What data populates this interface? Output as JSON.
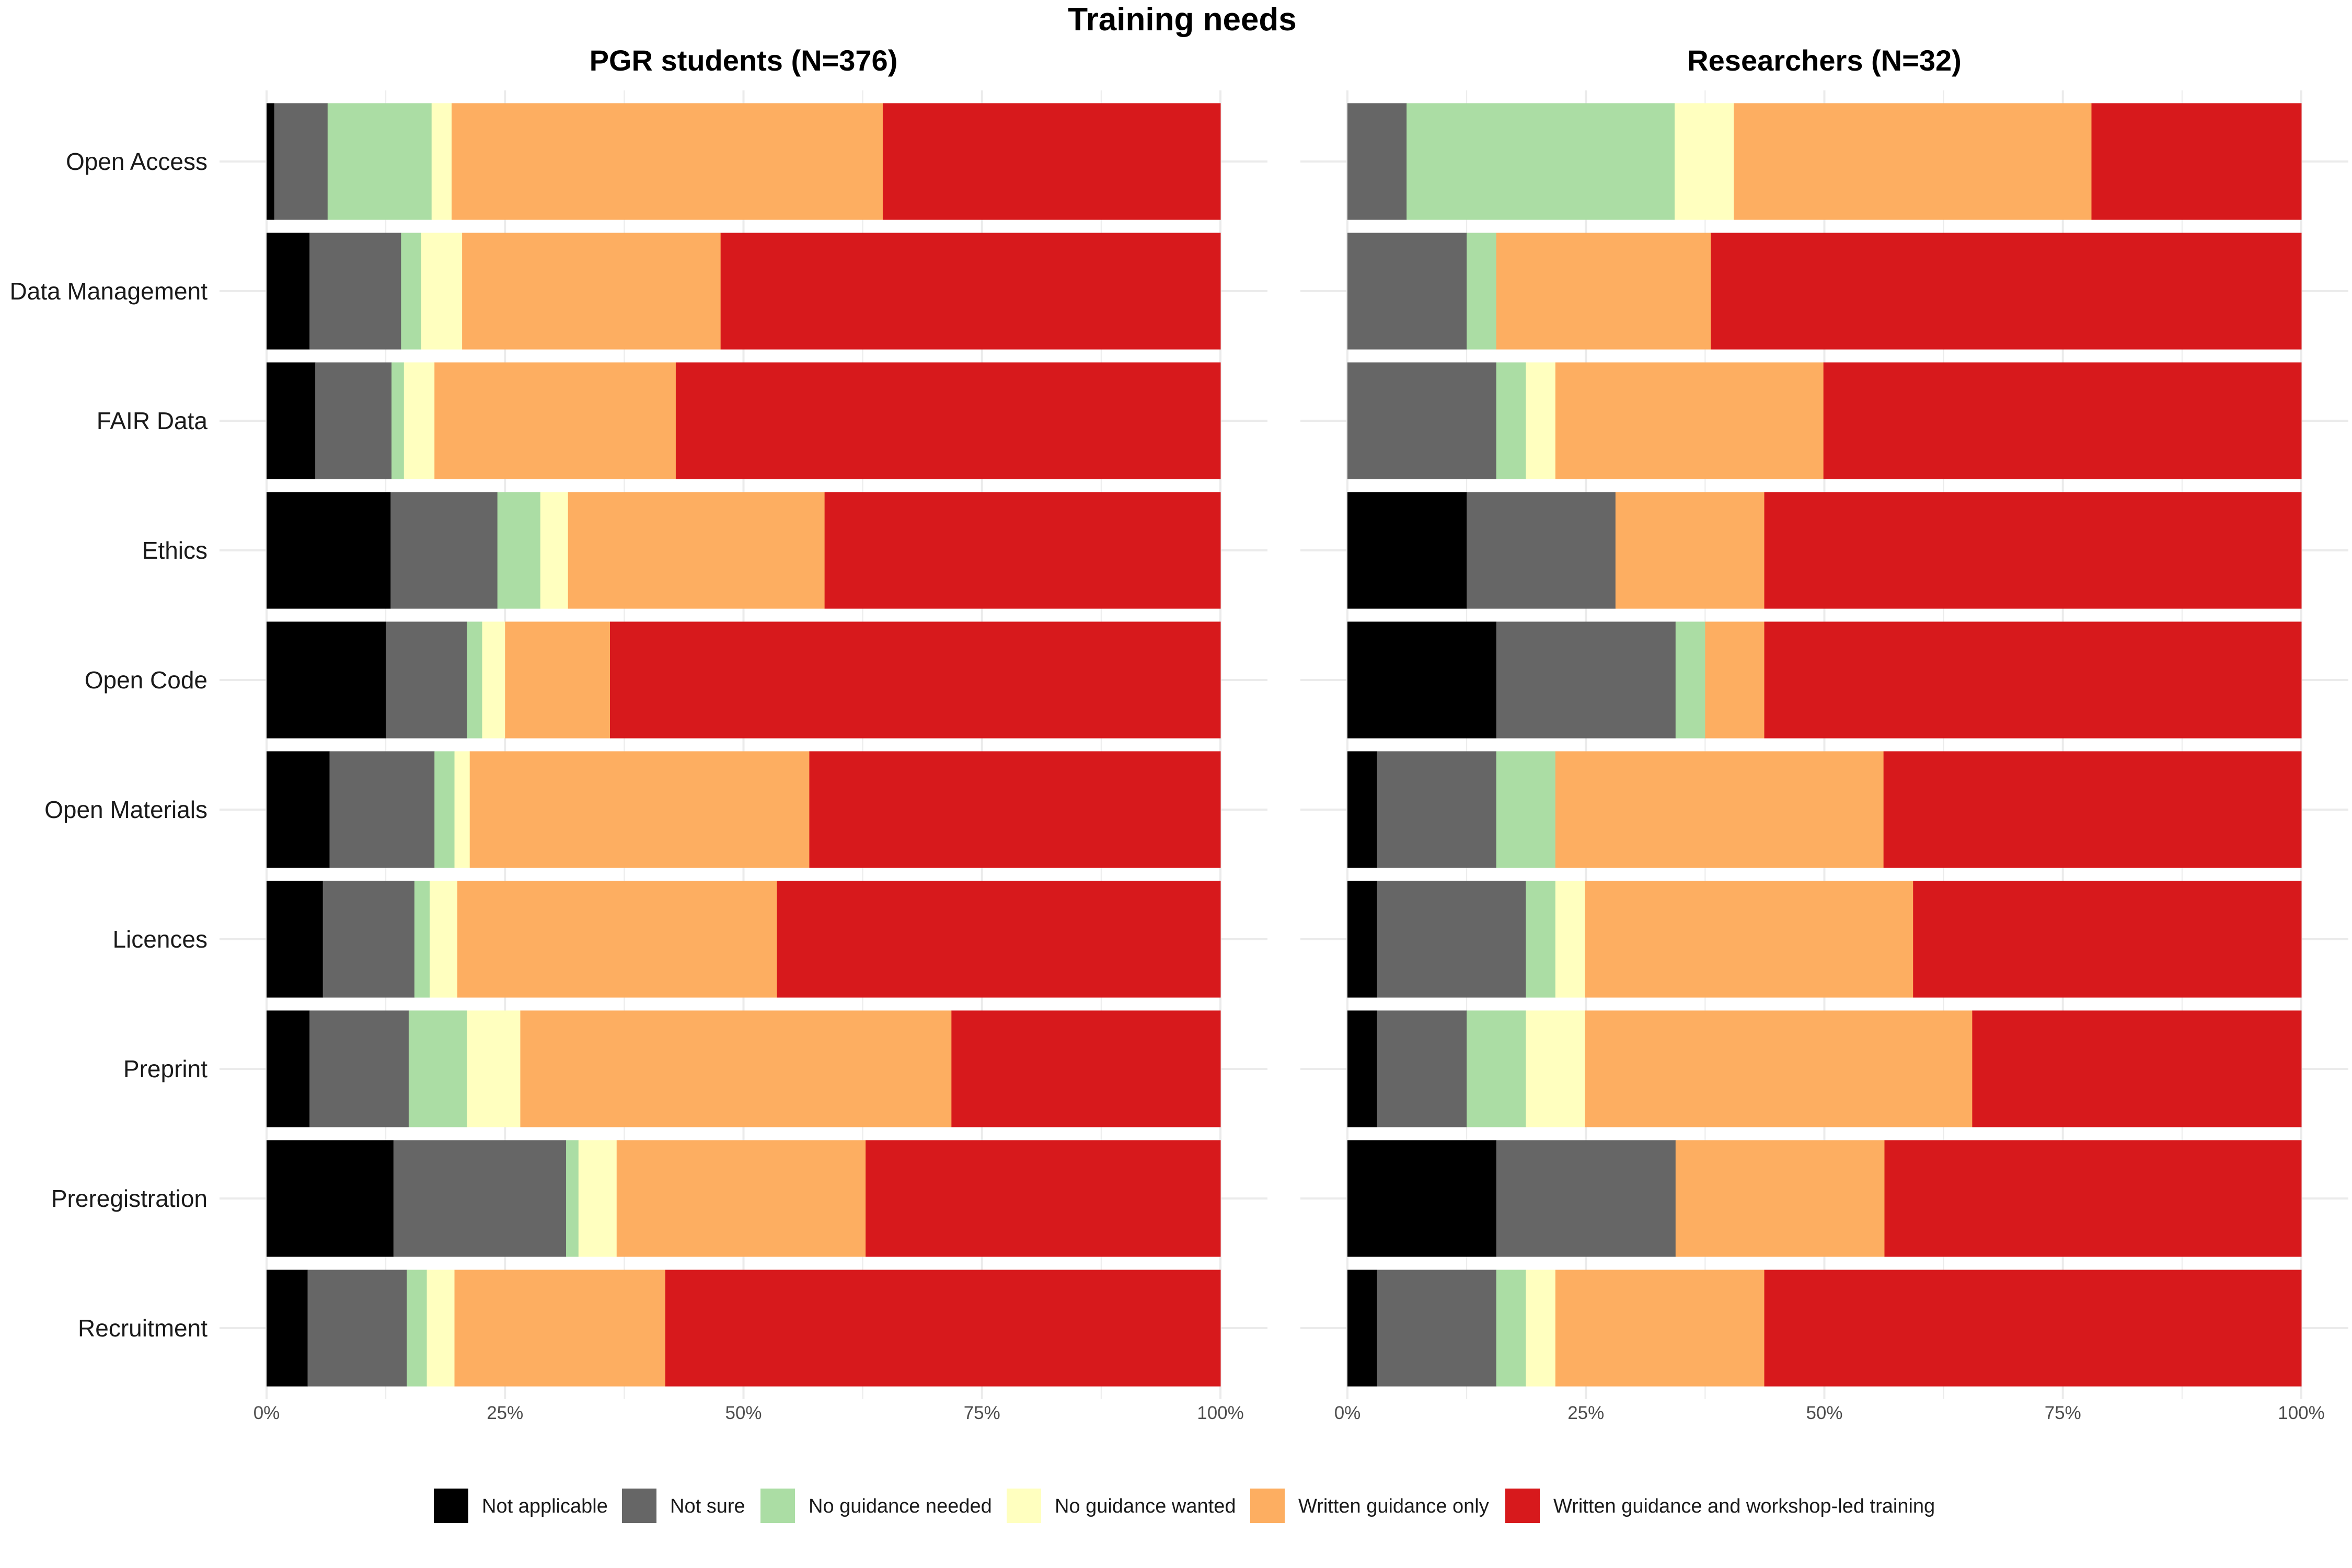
{
  "chart_data": {
    "type": "bar",
    "orientation": "horizontal",
    "stacked": "percent",
    "title": "Training needs",
    "categories": [
      "Open Access",
      "Data Management",
      "FAIR Data",
      "Ethics",
      "Open Code",
      "Open Materials",
      "Licences",
      "Preprint",
      "Preregistration",
      "Recruitment"
    ],
    "x_ticks": [
      "0%",
      "25%",
      "50%",
      "75%",
      "100%"
    ],
    "xlim": [
      0,
      100
    ],
    "grid": true,
    "legend_position": "bottom",
    "legend": [
      {
        "name": "Not applicable",
        "color": "#000000"
      },
      {
        "name": "Not sure",
        "color": "#666666"
      },
      {
        "name": "No guidance needed",
        "color": "#ABDDA4"
      },
      {
        "name": "No guidance wanted",
        "color": "#FFFFBF"
      },
      {
        "name": "Written guidance only",
        "color": "#FDAE61"
      },
      {
        "name": "Written guidance and workshop-led training",
        "color": "#D7191C"
      }
    ],
    "panels": [
      {
        "title": "PGR students (N=376)",
        "series": [
          {
            "name": "Not applicable",
            "values": [
              0.8,
              4.5,
              5.1,
              13.0,
              12.5,
              6.6,
              5.9,
              4.5,
              13.3,
              4.3
            ]
          },
          {
            "name": "Not sure",
            "values": [
              5.6,
              9.6,
              8.0,
              11.2,
              8.5,
              11.0,
              9.6,
              10.4,
              18.1,
              10.4
            ]
          },
          {
            "name": "No guidance needed",
            "values": [
              10.9,
              2.1,
              1.3,
              4.5,
              1.6,
              2.1,
              1.6,
              6.1,
              1.3,
              2.1
            ]
          },
          {
            "name": "No guidance wanted",
            "values": [
              2.1,
              4.3,
              3.2,
              2.9,
              2.4,
              1.6,
              2.9,
              5.6,
              4.0,
              2.9
            ]
          },
          {
            "name": "Written guidance only",
            "values": [
              45.2,
              27.1,
              25.3,
              26.9,
              11.0,
              35.6,
              33.5,
              45.2,
              26.1,
              22.1
            ]
          },
          {
            "name": "Written guidance and workshop-led training",
            "values": [
              35.4,
              52.4,
              57.1,
              41.5,
              64.0,
              43.1,
              46.5,
              28.2,
              37.2,
              58.2
            ]
          }
        ]
      },
      {
        "title": "Researchers (N=32)",
        "series": [
          {
            "name": "Not applicable",
            "values": [
              0,
              0,
              0,
              12.5,
              15.6,
              3.1,
              3.1,
              3.1,
              15.6,
              3.1
            ]
          },
          {
            "name": "Not sure",
            "values": [
              6.2,
              12.5,
              15.6,
              15.6,
              18.8,
              12.5,
              15.6,
              9.4,
              18.8,
              12.5
            ]
          },
          {
            "name": "No guidance needed",
            "values": [
              28.1,
              3.1,
              3.1,
              0,
              3.1,
              6.2,
              3.1,
              6.2,
              0,
              3.1
            ]
          },
          {
            "name": "No guidance wanted",
            "values": [
              6.2,
              0,
              3.1,
              0,
              0,
              0,
              3.1,
              6.2,
              0,
              3.1
            ]
          },
          {
            "name": "Written guidance only",
            "values": [
              37.5,
              22.5,
              28.1,
              15.6,
              6.2,
              34.4,
              34.4,
              40.6,
              21.9,
              21.9
            ]
          },
          {
            "name": "Written guidance and workshop-led training",
            "values": [
              22.0,
              61.9,
              50.1,
              56.3,
              56.3,
              43.8,
              40.7,
              34.5,
              43.7,
              56.3
            ]
          }
        ]
      }
    ]
  }
}
